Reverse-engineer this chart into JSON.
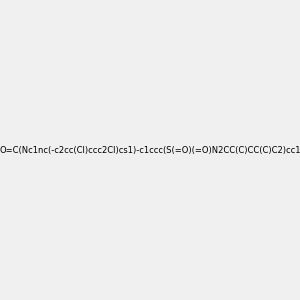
{
  "smiles": "O=C(Nc1nc(-c2cc(Cl)ccc2Cl)cs1)-c1ccc(S(=O)(=O)N2CC(C)CC(C)C2)cc1",
  "image_size": 300,
  "background_color": "#f0f0f0"
}
